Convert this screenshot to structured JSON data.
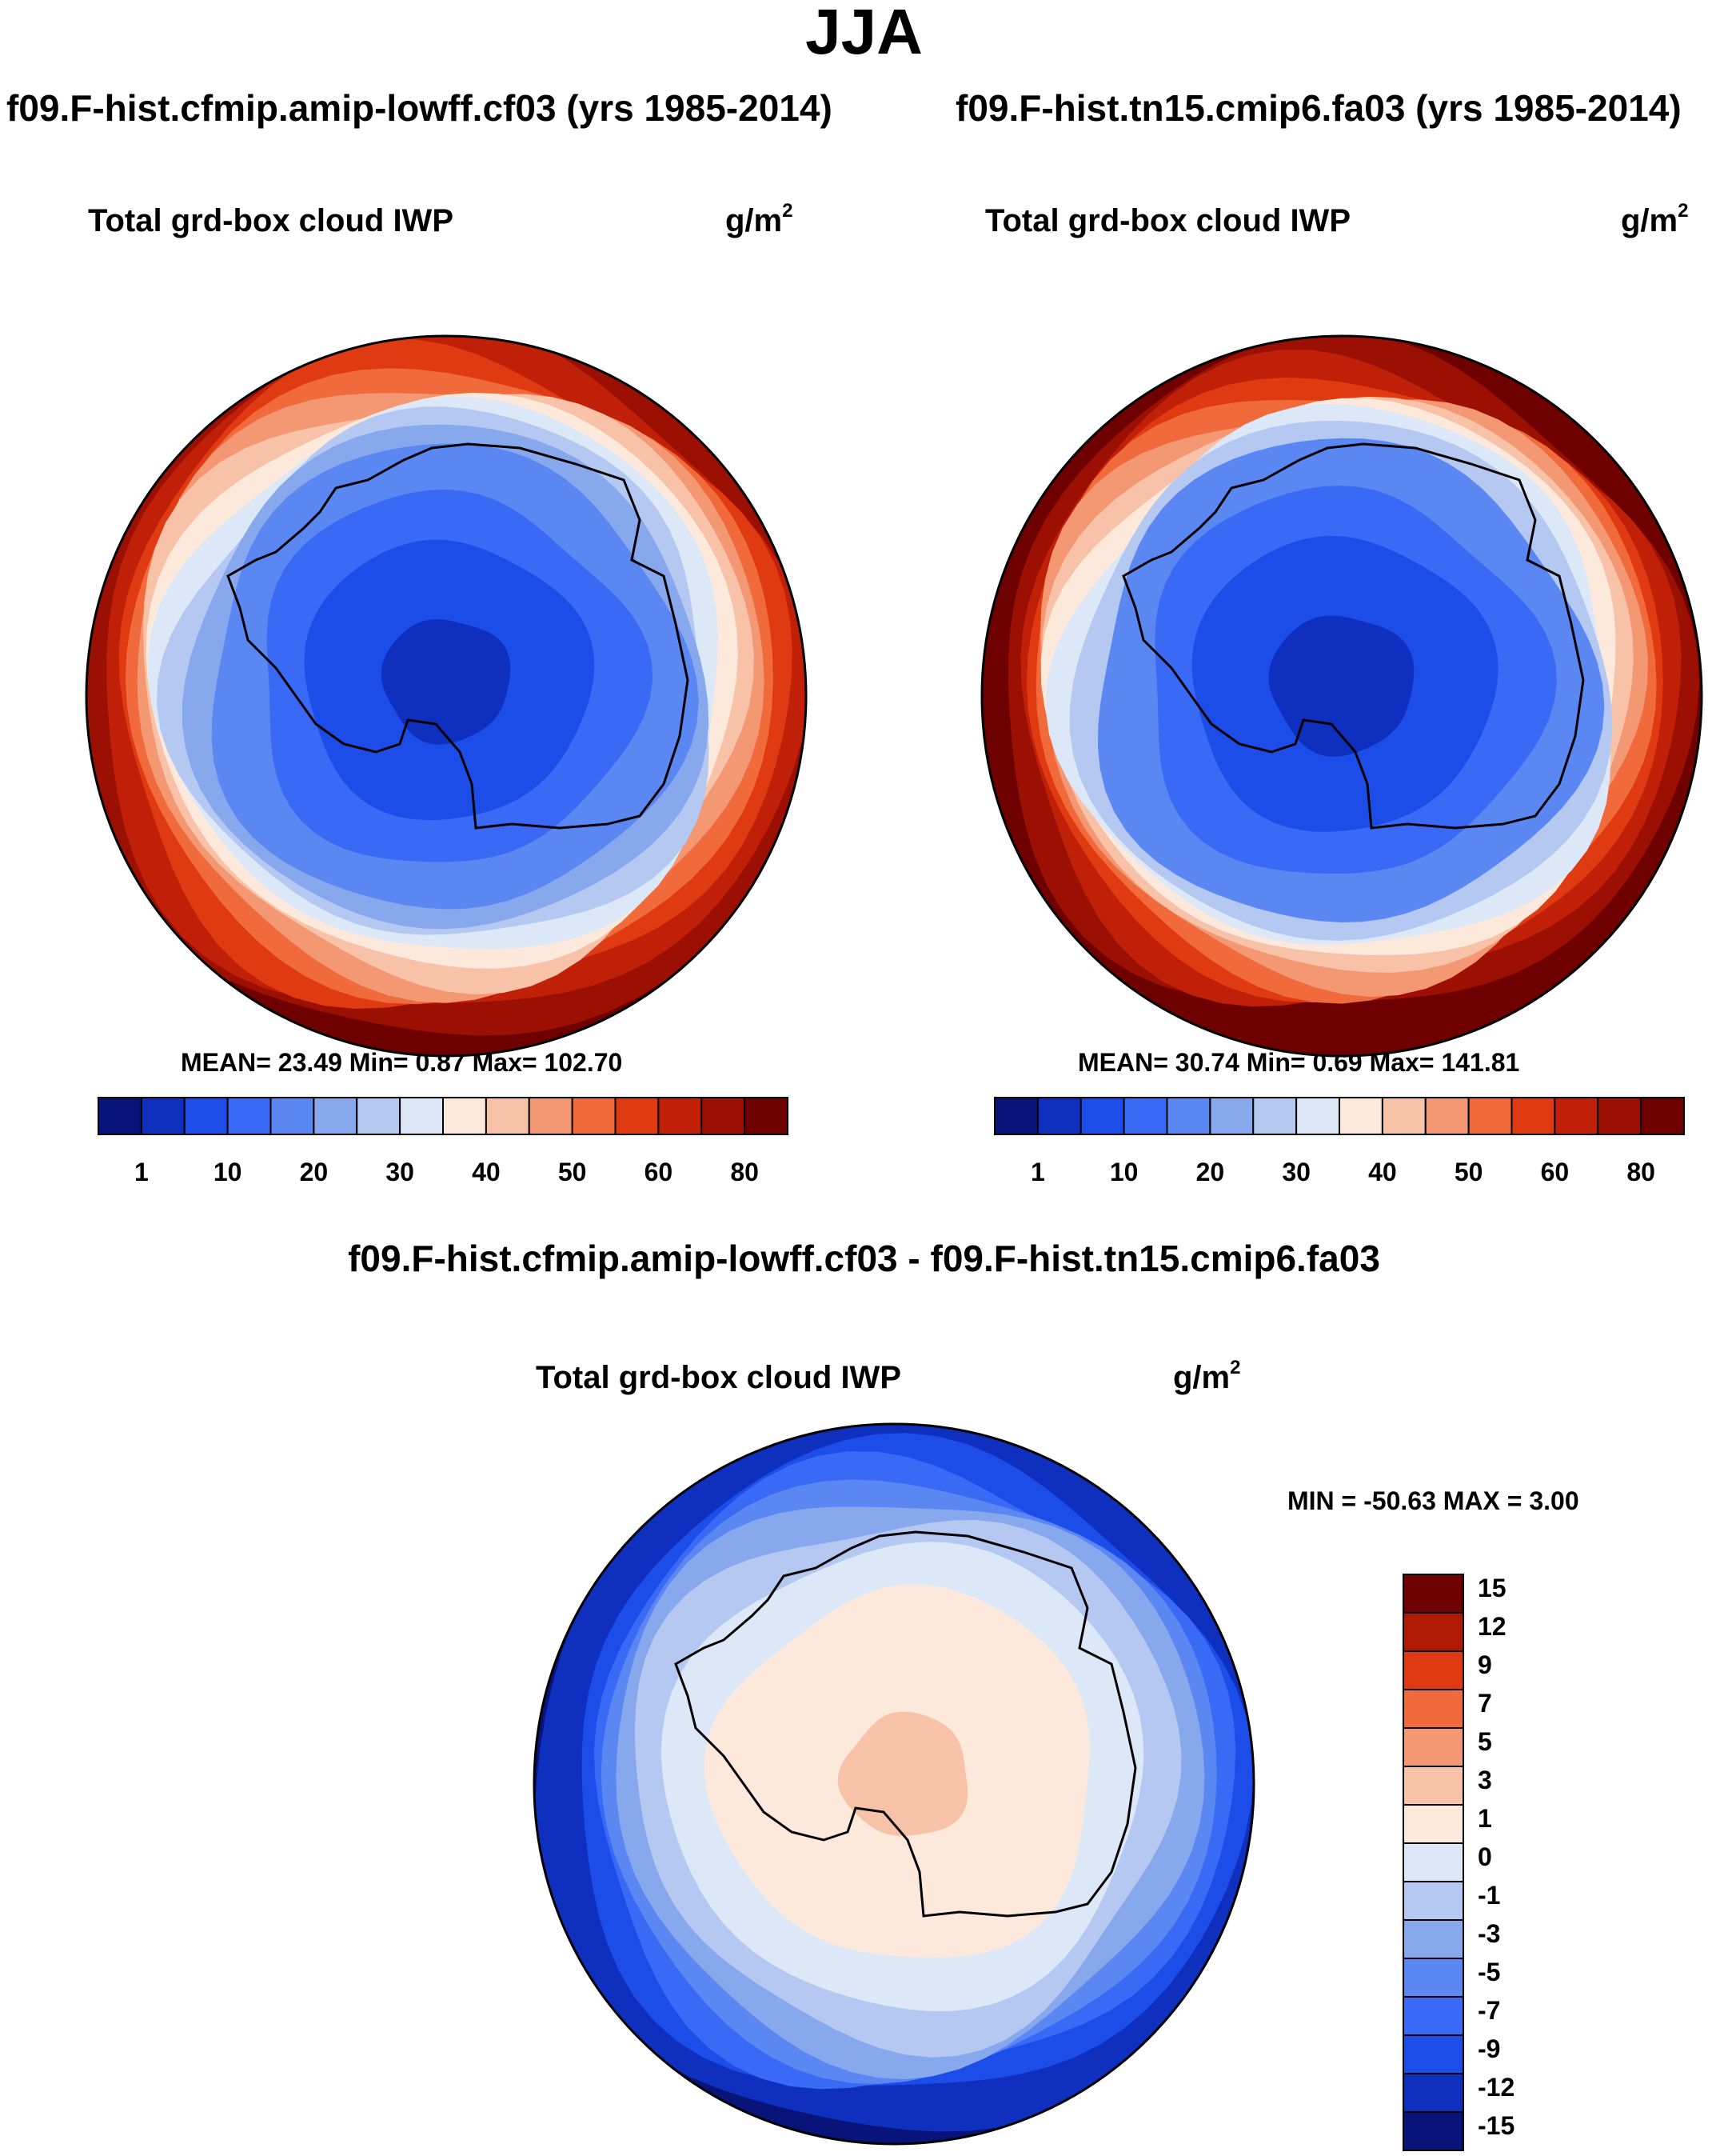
{
  "title": "JJA",
  "panels": [
    {
      "run_title": "f09.F-hist.cfmip.amip-lowff.cf03 (yrs 1985-2014)",
      "variable": "Total grd-box cloud IWP",
      "units_base": "g/m",
      "units_exp": "2",
      "stats": "MEAN=  23.49  Min=   0.87  Max= 102.70"
    },
    {
      "run_title": "f09.F-hist.tn15.cmip6.fa03 (yrs 1985-2014)",
      "variable": "Total grd-box cloud IWP",
      "units_base": "g/m",
      "units_exp": "2",
      "stats": "MEAN=  30.74  Min=   0.69  Max= 141.81"
    }
  ],
  "difference": {
    "title": "f09.F-hist.cfmip.amip-lowff.cf03 - f09.F-hist.tn15.cmip6.fa03",
    "variable": "Total grd-box cloud IWP",
    "units_base": "g/m",
    "units_exp": "2",
    "stats": "MIN = -50.63 MAX =   3.00"
  },
  "chart_data": [
    {
      "type": "heatmap",
      "projection": "south polar stereographic",
      "title": "f09.F-hist.cfmip.amip-lowff.cf03 (yrs 1985-2014)",
      "variable": "Total grd-box cloud IWP",
      "units": "g/m2",
      "mean": 23.49,
      "min": 0.87,
      "max": 102.7,
      "colorbar": {
        "orientation": "horizontal",
        "ticks": [
          "1",
          "10",
          "20",
          "30",
          "40",
          "50",
          "60",
          "80"
        ],
        "colors": [
          "#08147a",
          "#0f2fbe",
          "#1d4de8",
          "#3a6af5",
          "#5b87f2",
          "#88a8ee",
          "#b4c8f2",
          "#dce8f8",
          "#fde9dc",
          "#f8c2a8",
          "#f49773",
          "#f06a3c",
          "#e03a12",
          "#c01f08",
          "#9c0f03",
          "#6e0000"
        ]
      }
    },
    {
      "type": "heatmap",
      "projection": "south polar stereographic",
      "title": "f09.F-hist.tn15.cmip6.fa03 (yrs 1985-2014)",
      "variable": "Total grd-box cloud IWP",
      "units": "g/m2",
      "mean": 30.74,
      "min": 0.69,
      "max": 141.81,
      "colorbar": {
        "orientation": "horizontal",
        "ticks": [
          "1",
          "10",
          "20",
          "30",
          "40",
          "50",
          "60",
          "80"
        ],
        "colors": [
          "#08147a",
          "#0f2fbe",
          "#1d4de8",
          "#3a6af5",
          "#5b87f2",
          "#88a8ee",
          "#b4c8f2",
          "#dce8f8",
          "#fde9dc",
          "#f8c2a8",
          "#f49773",
          "#f06a3c",
          "#e03a12",
          "#c01f08",
          "#9c0f03",
          "#6e0000"
        ]
      }
    },
    {
      "type": "heatmap",
      "projection": "south polar stereographic",
      "title": "f09.F-hist.cfmip.amip-lowff.cf03 - f09.F-hist.tn15.cmip6.fa03",
      "variable": "Total grd-box cloud IWP",
      "units": "g/m2",
      "min": -50.63,
      "max": 3.0,
      "colorbar": {
        "orientation": "vertical",
        "ticks": [
          "15",
          "12",
          "9",
          "7",
          "5",
          "3",
          "1",
          "0",
          "-1",
          "-3",
          "-5",
          "-7",
          "-9",
          "-12",
          "-15"
        ],
        "colors": [
          "#6e0000",
          "#b01a05",
          "#e03a12",
          "#f06a3c",
          "#f49773",
          "#f8c2a8",
          "#fde9dc",
          "#dce8f8",
          "#b4c8f2",
          "#88a8ee",
          "#5b87f2",
          "#3a6af5",
          "#1d4de8",
          "#0f2fbe",
          "#08147a"
        ]
      }
    }
  ]
}
